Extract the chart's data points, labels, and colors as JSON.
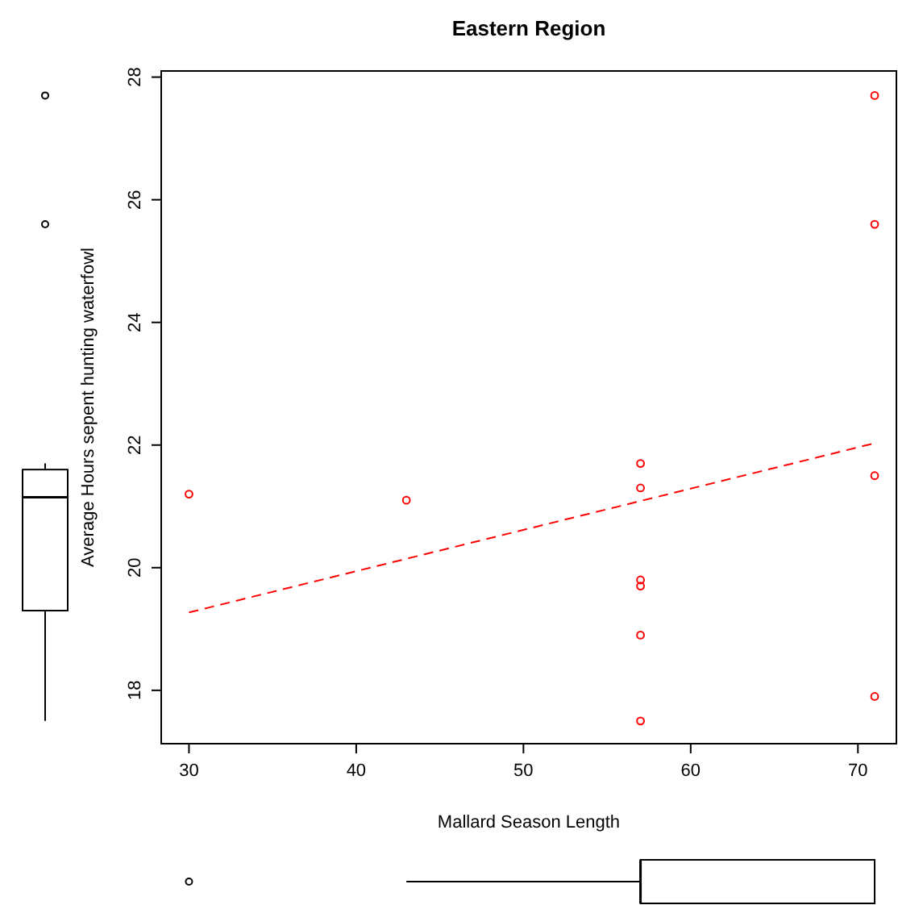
{
  "chart_data": {
    "type": "scatter",
    "title": "Eastern Region",
    "xlabel": "Mallard Season Length",
    "ylabel": "Average Hours sepent hunting waterfowl",
    "xlim": [
      28.34,
      72.3
    ],
    "ylim": [
      17.13,
      28.1
    ],
    "xticks": [
      30,
      40,
      50,
      60,
      70
    ],
    "yticks": [
      18,
      20,
      22,
      24,
      26,
      28
    ],
    "grid": false,
    "series": [
      {
        "type": "scatter",
        "color": "#ff0000",
        "marker": "circle",
        "x": [
          30,
          43,
          57,
          57,
          57,
          57,
          57,
          57,
          71,
          71,
          71,
          71
        ],
        "values": [
          21.2,
          21.1,
          21.7,
          21.3,
          19.8,
          19.7,
          18.9,
          17.5,
          27.7,
          25.6,
          21.5,
          17.9
        ]
      },
      {
        "type": "line",
        "color": "#ff0000",
        "line_style": "dashed",
        "x": [
          30,
          71
        ],
        "values": [
          19.27,
          22.03
        ]
      }
    ]
  }
}
